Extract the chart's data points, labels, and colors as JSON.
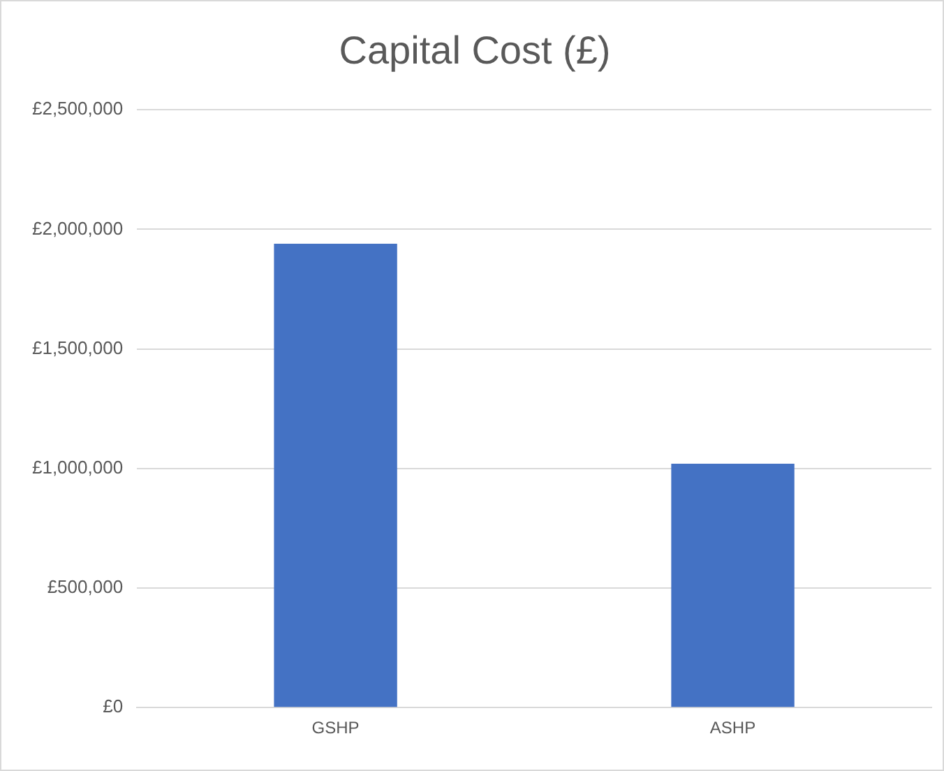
{
  "chart_data": {
    "type": "bar",
    "title": "Capital Cost (£)",
    "categories": [
      "GSHP",
      "ASHP"
    ],
    "values": [
      1940000,
      1020000
    ],
    "color": "#4472c4",
    "ylim": [
      0,
      2500000
    ],
    "yticks": [
      {
        "value": 0,
        "label": "£0"
      },
      {
        "value": 500000,
        "label": "£500,000"
      },
      {
        "value": 1000000,
        "label": "£1,000,000"
      },
      {
        "value": 1500000,
        "label": "£1,500,000"
      },
      {
        "value": 2000000,
        "label": "£2,000,000"
      },
      {
        "value": 2500000,
        "label": "£2,500,000"
      }
    ],
    "grid": "y",
    "legend": false
  }
}
